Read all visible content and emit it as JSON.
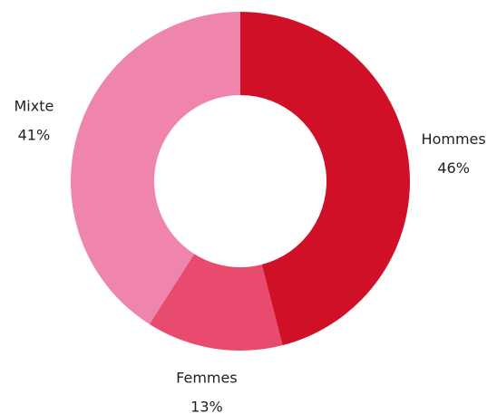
{
  "chart_data": {
    "type": "pie",
    "categories": [
      "Hommes",
      "Femmes",
      "Mixte"
    ],
    "values": [
      46,
      13,
      41
    ],
    "value_labels": [
      "46%",
      "13%",
      "41%"
    ],
    "colors": [
      "#d01027",
      "#e94b6e",
      "#ef85ad"
    ]
  }
}
